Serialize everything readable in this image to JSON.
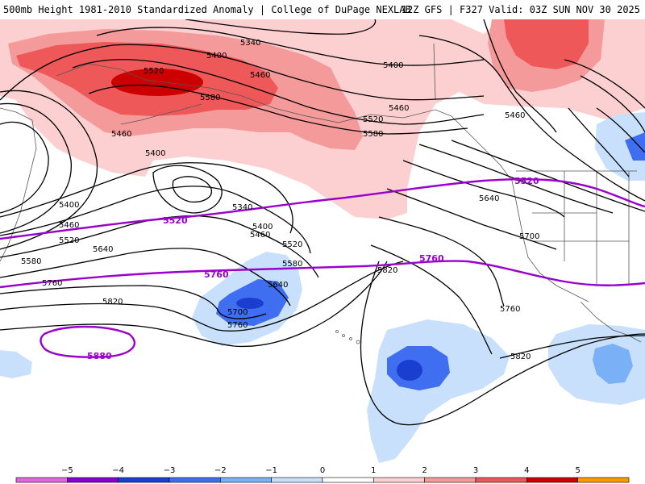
{
  "header": {
    "title_left": "500mb Height 1981-2010 Standardized Anomaly | College of DuPage NEXLAB",
    "title_right": "12Z GFS | F327 Valid: 03Z SUN NOV 30 2025"
  },
  "colors": {
    "neg5": "#e066e0",
    "neg4": "#8800cc",
    "neg3": "#1a3fd0",
    "neg2": "#3f6ff0",
    "neg1b": "#7ab0f5",
    "neg1": "#c8e0fb",
    "pos1": "#fcd0d0",
    "pos2": "#f59a9a",
    "pos3": "#ee5858",
    "pos4": "#cc0000",
    "pos5": "#ff9900",
    "contour": "#000000",
    "climo": "#9900cc",
    "border": "#555555"
  },
  "contour_labels": [
    "5340",
    "5400",
    "5460",
    "5520",
    "5580",
    "5640",
    "5700",
    "5760",
    "5820",
    "5880"
  ],
  "map_labels": {
    "l5340_a": "5340",
    "l5400_a": "5400",
    "l5400_b": "5400",
    "l5400_c": "5400",
    "l5400_d": "5400",
    "l5520_a": "5520",
    "l5460_a": "5460",
    "l5580_a": "5580",
    "l5460_b": "5460",
    "l5460_c": "5460",
    "l5520_b": "5520",
    "l5580_b": "5580",
    "l5460_d": "5460",
    "l5400_e": "5400",
    "l5340_b": "5340",
    "l5400_f": "5400",
    "l5460_e": "5460",
    "l5520_c": "5520",
    "l5520_d": "5520",
    "l5580_c": "5580",
    "l5580_d": "5580",
    "l5640_a": "5640",
    "l5640_b": "5640",
    "l5640_c": "5640",
    "l5700_a": "5700",
    "l5700_b": "5700",
    "l5760_a": "5760",
    "l5760_b": "5760",
    "l5760_c": "5760",
    "l5820_a": "5820",
    "l5820_b": "5820",
    "l5820_c": "5820",
    "l5460_f": "5460"
  },
  "climo_labels": {
    "c5520_a": "5520",
    "c5520_b": "5520",
    "c5760_a": "5760",
    "c5760_b": "5760",
    "c5880": "5880"
  },
  "colorbar": {
    "ticks": [
      "−5",
      "−4",
      "−3",
      "−2",
      "−1",
      "0",
      "1",
      "2",
      "3",
      "4",
      "5"
    ],
    "tick_values": [
      -5,
      -4,
      -3,
      -2,
      -1,
      0,
      1,
      2,
      3,
      4,
      5
    ]
  }
}
